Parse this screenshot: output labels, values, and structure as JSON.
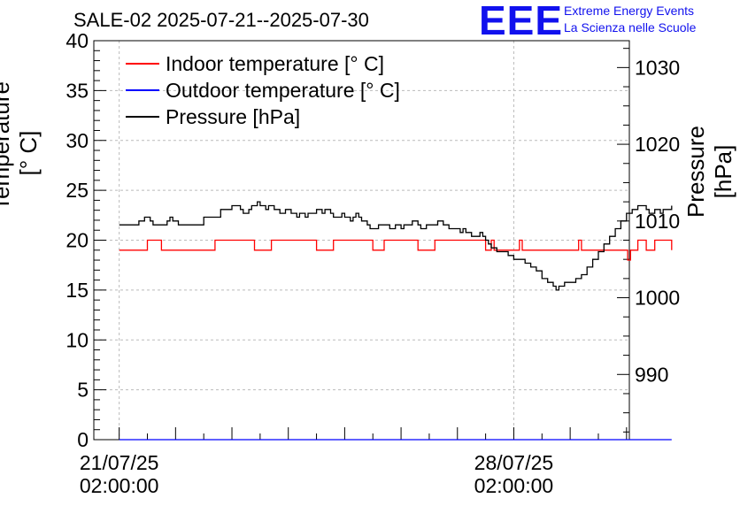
{
  "title": "SALE-02 2025-07-21--2025-07-30",
  "logo": {
    "mark": "EEE",
    "line1": "Extreme Energy Events",
    "line2": "La Scienza nelle Scuole"
  },
  "chart_data": {
    "type": "line",
    "title": "SALE-02 2025-07-21--2025-07-30",
    "xlabel": "",
    "ylabel": "Temperature [° C]",
    "ylabel_right": "Pressure [hPa]",
    "ylim": [
      0,
      40
    ],
    "ylim_right": [
      981.5,
      1033.5
    ],
    "xlim_days": [
      -0.45,
      9.05
    ],
    "y_ticks": [
      "0",
      "5",
      "10",
      "15",
      "20",
      "25",
      "30",
      "35",
      "40"
    ],
    "y_right_ticks": [
      "990",
      "1000",
      "1010",
      "1020",
      "1030"
    ],
    "x_ticks": [
      {
        "day": 0,
        "line1": "21/07/25",
        "line2": "02:00:00"
      },
      {
        "day": 7,
        "line1": "28/07/25",
        "line2": "02:00:00"
      }
    ],
    "grid": true,
    "legend_position": "top-left",
    "legend": [
      {
        "label": "Indoor temperature [° C]",
        "color": "#ff0000"
      },
      {
        "label": "Outdoor temperature [° C]",
        "color": "#0000ff"
      },
      {
        "label": "Pressure [hPa]",
        "color": "#000000"
      }
    ],
    "series": [
      {
        "name": "Indoor temperature [° C]",
        "axis": "left",
        "color": "#ff0000",
        "x": [
          0,
          0.45,
          0.5,
          0.7,
          0.75,
          1.4,
          1.7,
          1.75,
          2.4,
          2.5,
          2.7,
          2.8,
          3.5,
          3.6,
          3.8,
          3.9,
          4.5,
          4.6,
          4.7,
          4.8,
          5.3,
          5.4,
          5.6,
          5.7,
          6.5,
          6.55,
          6.6,
          6.65,
          7.0,
          7.05,
          7.1,
          7.15,
          8.0,
          8.05,
          8.15,
          8.2,
          9.0,
          9.02,
          9.07,
          9.1,
          9.2,
          9.3,
          9.35,
          9.45,
          9.5,
          9.55,
          9.8
        ],
        "values": [
          19,
          19,
          20,
          20,
          19,
          19,
          20,
          20,
          19,
          19,
          20,
          20,
          19,
          19,
          20,
          20,
          19,
          19,
          20,
          20,
          19,
          19,
          20,
          20,
          19,
          19,
          20,
          19,
          19,
          19,
          20,
          19,
          19,
          19,
          20,
          19,
          19,
          18,
          19,
          19,
          20,
          20,
          19,
          19,
          20,
          20,
          19
        ]
      },
      {
        "name": "Outdoor temperature [° C]",
        "axis": "left",
        "color": "#0000ff",
        "x": [
          0,
          9.8
        ],
        "values": [
          0,
          0
        ]
      },
      {
        "name": "Pressure [hPa]",
        "axis": "right",
        "color": "#000000",
        "x": [
          0,
          0.3,
          0.35,
          0.45,
          0.5,
          0.55,
          0.6,
          0.8,
          0.85,
          0.9,
          0.95,
          1.05,
          1.5,
          1.75,
          1.8,
          2.0,
          2.1,
          2.15,
          2.2,
          2.3,
          2.35,
          2.45,
          2.5,
          2.6,
          2.65,
          2.75,
          2.85,
          2.95,
          3.05,
          3.15,
          3.2,
          3.3,
          3.35,
          3.45,
          3.5,
          3.6,
          3.65,
          3.75,
          3.8,
          3.95,
          4.0,
          4.1,
          4.15,
          4.2,
          4.25,
          4.3,
          4.4,
          4.45,
          4.55,
          4.6,
          4.7,
          4.8,
          4.9,
          5.0,
          5.05,
          5.1,
          5.2,
          5.3,
          5.35,
          5.45,
          5.55,
          5.65,
          5.75,
          5.85,
          5.95,
          6.05,
          6.1,
          6.15,
          6.25,
          6.35,
          6.4,
          6.45,
          6.5,
          6.55,
          6.6,
          6.7,
          6.8,
          6.9,
          7.0,
          7.2,
          7.3,
          7.4,
          7.5,
          7.6,
          7.7,
          7.75,
          7.8,
          7.9,
          8.0,
          8.1,
          8.2,
          8.3,
          8.4,
          8.5,
          8.6,
          8.7,
          8.8,
          8.9,
          9.0,
          9.1,
          9.2,
          9.3,
          9.35,
          9.4,
          9.5,
          9.6,
          9.65,
          9.8
        ],
        "values": [
          1009.5,
          1009.5,
          1010,
          1010.5,
          1010.5,
          1010,
          1009.5,
          1009.5,
          1010,
          1010.5,
          1010,
          1009.5,
          1010.5,
          1010.5,
          1011.5,
          1012,
          1012,
          1011.5,
          1011,
          1011.5,
          1012,
          1012.5,
          1012,
          1011.5,
          1012,
          1011.5,
          1011,
          1011.5,
          1011,
          1010.5,
          1011,
          1010.5,
          1011,
          1011,
          1011.5,
          1011,
          1011.5,
          1011,
          1010.5,
          1011,
          1010.5,
          1010,
          1010.5,
          1011,
          1010.5,
          1010,
          1009.5,
          1009,
          1009,
          1009.5,
          1009.5,
          1009,
          1009.5,
          1009,
          1009.5,
          1009.5,
          1010,
          1009.5,
          1009,
          1009.5,
          1009.5,
          1010,
          1009.5,
          1009,
          1009,
          1008.5,
          1009,
          1008.5,
          1008,
          1008,
          1008.5,
          1008,
          1007.5,
          1007,
          1006.5,
          1006,
          1006,
          1005.5,
          1005,
          1004.5,
          1004,
          1003.5,
          1002.5,
          1002,
          1001.5,
          1001,
          1001.5,
          1002,
          1002,
          1002.5,
          1003,
          1004,
          1005,
          1006,
          1007,
          1008,
          1009,
          1010,
          1011,
          1011.5,
          1012,
          1012,
          1011.5,
          1011,
          1011.5,
          1011,
          1011.5,
          1012
        ]
      }
    ]
  }
}
